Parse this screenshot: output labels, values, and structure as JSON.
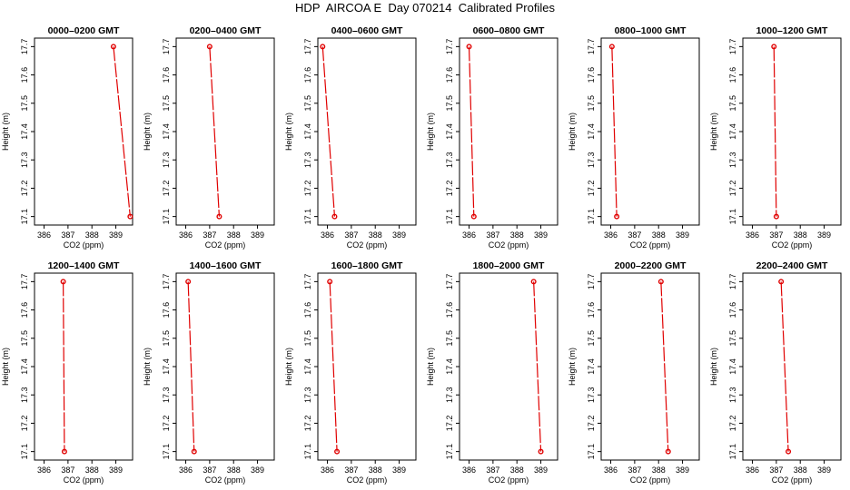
{
  "title": "HDP  AIRCOA E  Day 070214  Calibrated Profiles",
  "colors": {
    "series": "#e00000",
    "axis": "#000000"
  },
  "chart_data": [
    {
      "type": "line",
      "title": "0000–0200 GMT",
      "xlabel": "CO2 (ppm)",
      "ylabel": "Height (m)",
      "xlim": [
        385.6,
        389.7
      ],
      "ylim": [
        17.07,
        17.73
      ],
      "xticks": [
        386,
        387,
        388,
        389
      ],
      "yticks": [
        17.1,
        17.2,
        17.3,
        17.4,
        17.5,
        17.6,
        17.7
      ],
      "series": [
        {
          "points": [
            {
              "x": 388.9,
              "y": 17.7
            },
            {
              "x": 389.6,
              "y": 17.1
            }
          ]
        }
      ]
    },
    {
      "type": "line",
      "title": "0200–0400 GMT",
      "xlabel": "CO2 (ppm)",
      "ylabel": "Height (m)",
      "xlim": [
        385.6,
        389.7
      ],
      "ylim": [
        17.07,
        17.73
      ],
      "xticks": [
        386,
        387,
        388,
        389
      ],
      "yticks": [
        17.1,
        17.2,
        17.3,
        17.4,
        17.5,
        17.6,
        17.7
      ],
      "series": [
        {
          "points": [
            {
              "x": 387.0,
              "y": 17.7
            },
            {
              "x": 387.4,
              "y": 17.1
            }
          ]
        }
      ]
    },
    {
      "type": "line",
      "title": "0400–0600 GMT",
      "xlabel": "CO2 (ppm)",
      "ylabel": "Height (m)",
      "xlim": [
        385.6,
        389.7
      ],
      "ylim": [
        17.07,
        17.73
      ],
      "xticks": [
        386,
        387,
        388,
        389
      ],
      "yticks": [
        17.1,
        17.2,
        17.3,
        17.4,
        17.5,
        17.6,
        17.7
      ],
      "series": [
        {
          "points": [
            {
              "x": 385.8,
              "y": 17.7
            },
            {
              "x": 386.3,
              "y": 17.1
            }
          ]
        }
      ]
    },
    {
      "type": "line",
      "title": "0600–0800 GMT",
      "xlabel": "CO2 (ppm)",
      "ylabel": "Height (m)",
      "xlim": [
        385.6,
        389.7
      ],
      "ylim": [
        17.07,
        17.73
      ],
      "xticks": [
        386,
        387,
        388,
        389
      ],
      "yticks": [
        17.1,
        17.2,
        17.3,
        17.4,
        17.5,
        17.6,
        17.7
      ],
      "series": [
        {
          "points": [
            {
              "x": 386.0,
              "y": 17.7
            },
            {
              "x": 386.2,
              "y": 17.1
            }
          ]
        }
      ]
    },
    {
      "type": "line",
      "title": "0800–1000 GMT",
      "xlabel": "CO2 (ppm)",
      "ylabel": "Height (m)",
      "xlim": [
        385.6,
        389.7
      ],
      "ylim": [
        17.07,
        17.73
      ],
      "xticks": [
        386,
        387,
        388,
        389
      ],
      "yticks": [
        17.1,
        17.2,
        17.3,
        17.4,
        17.5,
        17.6,
        17.7
      ],
      "series": [
        {
          "points": [
            {
              "x": 386.05,
              "y": 17.7
            },
            {
              "x": 386.25,
              "y": 17.1
            }
          ]
        }
      ]
    },
    {
      "type": "line",
      "title": "1000–1200 GMT",
      "xlabel": "CO2 (ppm)",
      "ylabel": "Height (m)",
      "xlim": [
        385.6,
        389.7
      ],
      "ylim": [
        17.07,
        17.73
      ],
      "xticks": [
        386,
        387,
        388,
        389
      ],
      "yticks": [
        17.1,
        17.2,
        17.3,
        17.4,
        17.5,
        17.6,
        17.7
      ],
      "series": [
        {
          "points": [
            {
              "x": 386.9,
              "y": 17.7
            },
            {
              "x": 387.0,
              "y": 17.1
            }
          ]
        }
      ]
    },
    {
      "type": "line",
      "title": "1200–1400 GMT",
      "xlabel": "CO2 (ppm)",
      "ylabel": "Height (m)",
      "xlim": [
        385.6,
        389.7
      ],
      "ylim": [
        17.07,
        17.73
      ],
      "xticks": [
        386,
        387,
        388,
        389
      ],
      "yticks": [
        17.1,
        17.2,
        17.3,
        17.4,
        17.5,
        17.6,
        17.7
      ],
      "series": [
        {
          "points": [
            {
              "x": 386.8,
              "y": 17.7
            },
            {
              "x": 386.85,
              "y": 17.1
            }
          ]
        }
      ]
    },
    {
      "type": "line",
      "title": "1400–1600 GMT",
      "xlabel": "CO2 (ppm)",
      "ylabel": "Height (m)",
      "xlim": [
        385.6,
        389.7
      ],
      "ylim": [
        17.07,
        17.73
      ],
      "xticks": [
        386,
        387,
        388,
        389
      ],
      "yticks": [
        17.1,
        17.2,
        17.3,
        17.4,
        17.5,
        17.6,
        17.7
      ],
      "series": [
        {
          "points": [
            {
              "x": 386.1,
              "y": 17.7
            },
            {
              "x": 386.35,
              "y": 17.1
            }
          ]
        }
      ]
    },
    {
      "type": "line",
      "title": "1600–1800 GMT",
      "xlabel": "CO2 (ppm)",
      "ylabel": "Height (m)",
      "xlim": [
        385.6,
        389.7
      ],
      "ylim": [
        17.07,
        17.73
      ],
      "xticks": [
        386,
        387,
        388,
        389
      ],
      "yticks": [
        17.1,
        17.2,
        17.3,
        17.4,
        17.5,
        17.6,
        17.7
      ],
      "series": [
        {
          "points": [
            {
              "x": 386.1,
              "y": 17.7
            },
            {
              "x": 386.4,
              "y": 17.1
            }
          ]
        }
      ]
    },
    {
      "type": "line",
      "title": "1800–2000 GMT",
      "xlabel": "CO2 (ppm)",
      "ylabel": "Height (m)",
      "xlim": [
        385.6,
        389.7
      ],
      "ylim": [
        17.07,
        17.73
      ],
      "xticks": [
        386,
        387,
        388,
        389
      ],
      "yticks": [
        17.1,
        17.2,
        17.3,
        17.4,
        17.5,
        17.6,
        17.7
      ],
      "series": [
        {
          "points": [
            {
              "x": 388.7,
              "y": 17.7
            },
            {
              "x": 389.0,
              "y": 17.1
            }
          ]
        }
      ]
    },
    {
      "type": "line",
      "title": "2000–2200 GMT",
      "xlabel": "CO2 (ppm)",
      "ylabel": "Height (m)",
      "xlim": [
        385.6,
        389.7
      ],
      "ylim": [
        17.07,
        17.73
      ],
      "xticks": [
        386,
        387,
        388,
        389
      ],
      "yticks": [
        17.1,
        17.2,
        17.3,
        17.4,
        17.5,
        17.6,
        17.7
      ],
      "series": [
        {
          "points": [
            {
              "x": 388.1,
              "y": 17.7
            },
            {
              "x": 388.4,
              "y": 17.1
            }
          ]
        }
      ]
    },
    {
      "type": "line",
      "title": "2200–2400 GMT",
      "xlabel": "CO2 (ppm)",
      "ylabel": "Height (m)",
      "xlim": [
        385.6,
        389.7
      ],
      "ylim": [
        17.07,
        17.73
      ],
      "xticks": [
        386,
        387,
        388,
        389
      ],
      "yticks": [
        17.1,
        17.2,
        17.3,
        17.4,
        17.5,
        17.6,
        17.7
      ],
      "series": [
        {
          "points": [
            {
              "x": 387.2,
              "y": 17.7
            },
            {
              "x": 387.5,
              "y": 17.1
            }
          ]
        }
      ]
    }
  ]
}
